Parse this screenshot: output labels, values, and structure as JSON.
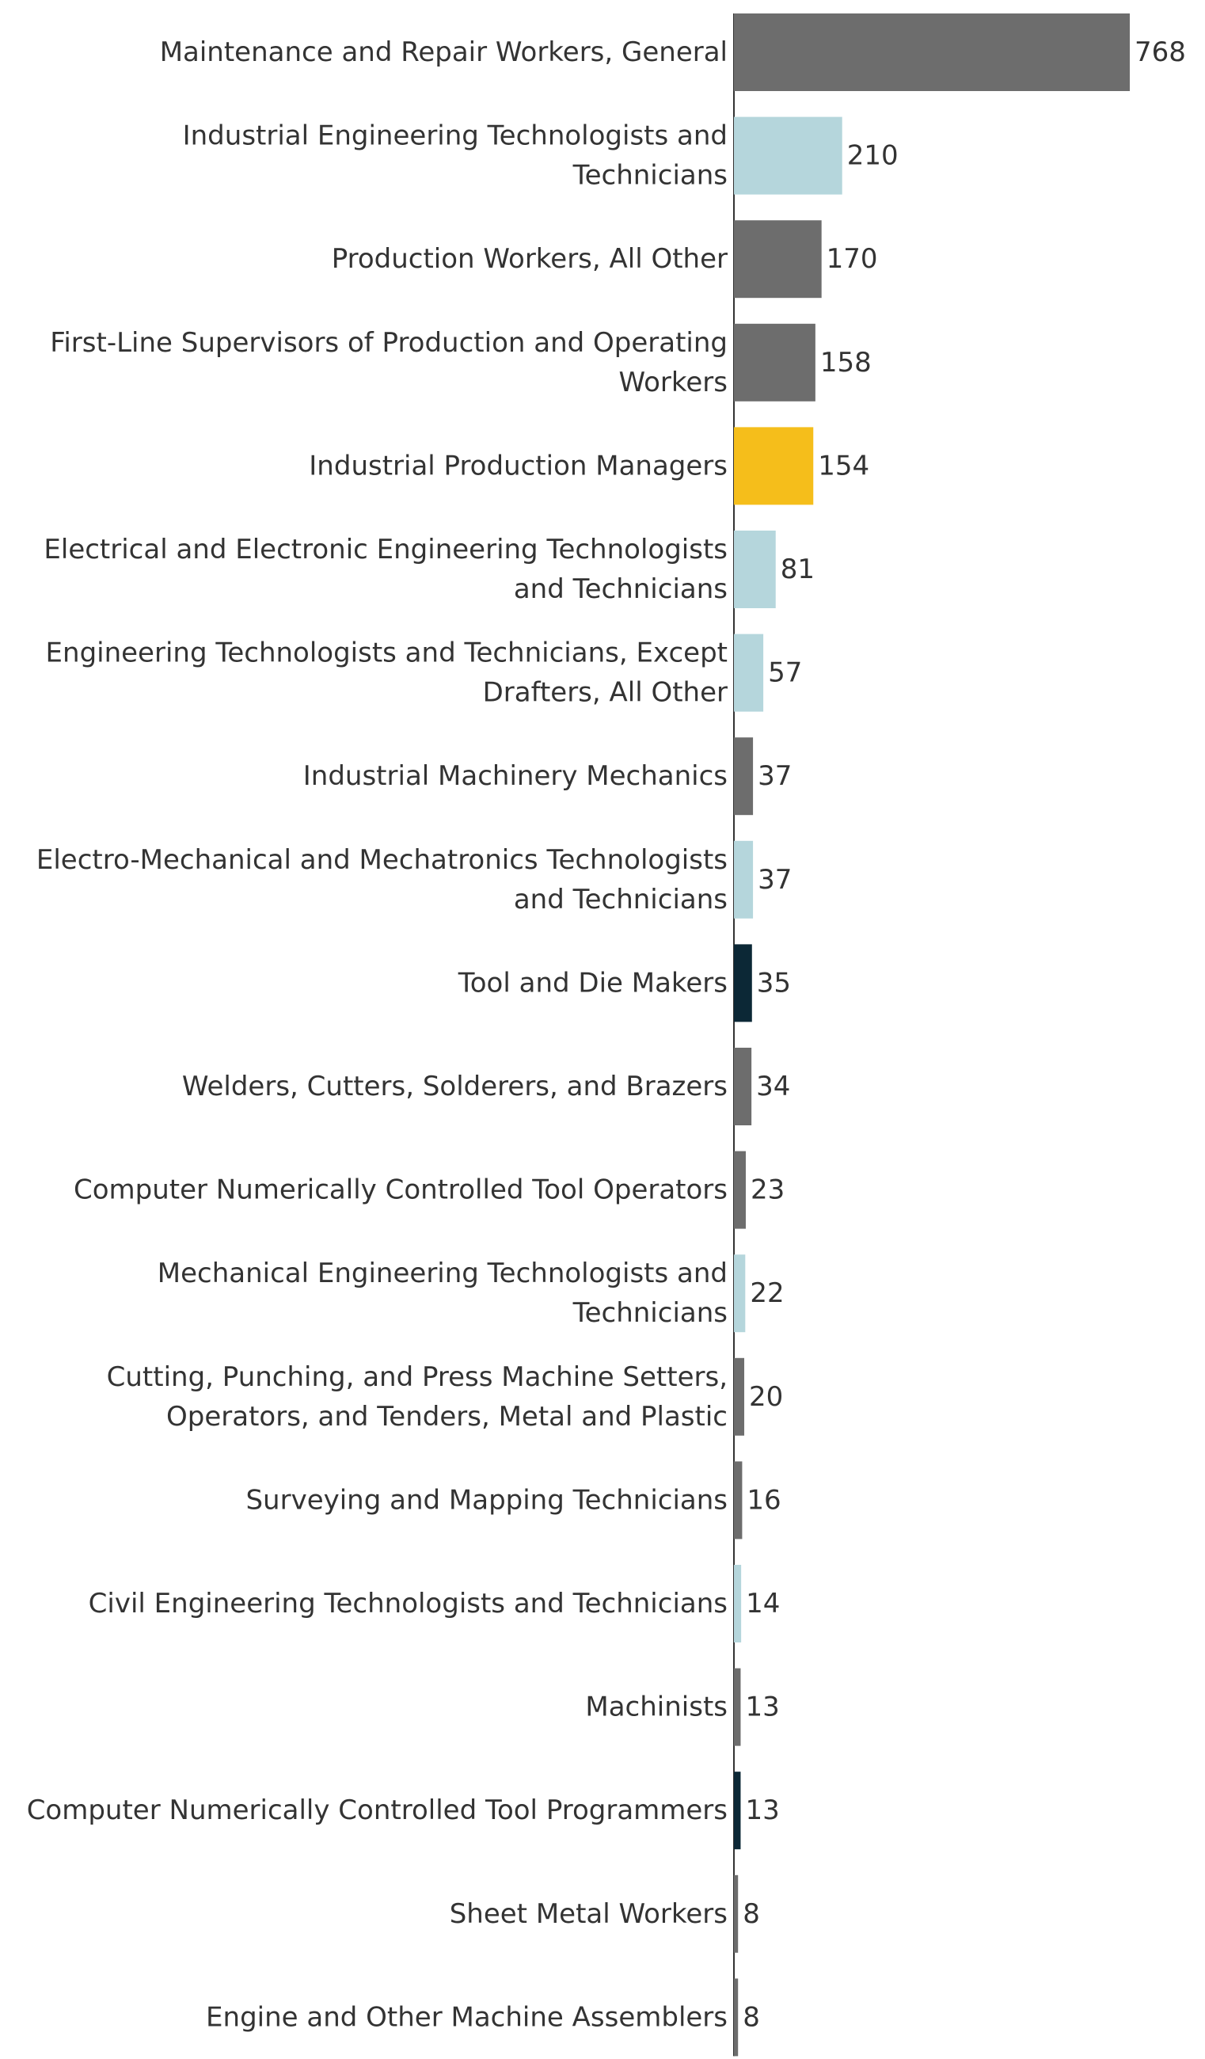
{
  "chart_data": {
    "type": "bar",
    "orientation": "horizontal",
    "categories": [
      [
        "Maintenance and Repair Workers, General"
      ],
      [
        "Industrial Engineering Technologists and",
        "Technicians"
      ],
      [
        "Production Workers, All Other"
      ],
      [
        "First-Line Supervisors of Production and Operating",
        "Workers"
      ],
      [
        "Industrial Production Managers"
      ],
      [
        "Electrical and Electronic Engineering Technologists",
        "and Technicians"
      ],
      [
        "Engineering Technologists and Technicians, Except",
        "Drafters, All Other"
      ],
      [
        "Industrial Machinery Mechanics"
      ],
      [
        "Electro-Mechanical and Mechatronics Technologists",
        "and Technicians"
      ],
      [
        "Tool and Die Makers"
      ],
      [
        "Welders, Cutters, Solderers, and Brazers"
      ],
      [
        "Computer Numerically Controlled Tool Operators"
      ],
      [
        "Mechanical Engineering Technologists and",
        "Technicians"
      ],
      [
        "Cutting, Punching, and Press Machine Setters,",
        "Operators, and Tenders, Metal and Plastic"
      ],
      [
        "Surveying and Mapping Technicians"
      ],
      [
        "Civil Engineering Technologists and Technicians"
      ],
      [
        "Machinists"
      ],
      [
        "Computer Numerically Controlled Tool Programmers"
      ],
      [
        "Sheet Metal Workers"
      ],
      [
        "Engine and Other Machine Assemblers"
      ]
    ],
    "values": [
      768,
      210,
      170,
      158,
      154,
      81,
      57,
      37,
      37,
      35,
      34,
      23,
      22,
      20,
      16,
      14,
      13,
      13,
      8,
      8
    ],
    "value_labels": [
      "768",
      "210",
      "170",
      "158",
      "154",
      "81",
      "57",
      "37",
      "37",
      "35",
      "34",
      "23",
      "22",
      "20",
      "16",
      "14",
      "13",
      "13",
      "8",
      "8"
    ],
    "colors": [
      "#6d6d6d",
      "#b5d6dc",
      "#6d6d6d",
      "#6d6d6d",
      "#f5be1b",
      "#b5d6dc",
      "#b5d6dc",
      "#6d6d6d",
      "#b5d6dc",
      "#0c2836",
      "#6d6d6d",
      "#6d6d6d",
      "#b5d6dc",
      "#6d6d6d",
      "#6d6d6d",
      "#b5d6dc",
      "#6d6d6d",
      "#0c2836",
      "#6d6d6d",
      "#6d6d6d"
    ],
    "title": "",
    "xlabel": "",
    "ylabel": "",
    "xlim": [
      0,
      768
    ],
    "grid": false,
    "legend": "none"
  }
}
